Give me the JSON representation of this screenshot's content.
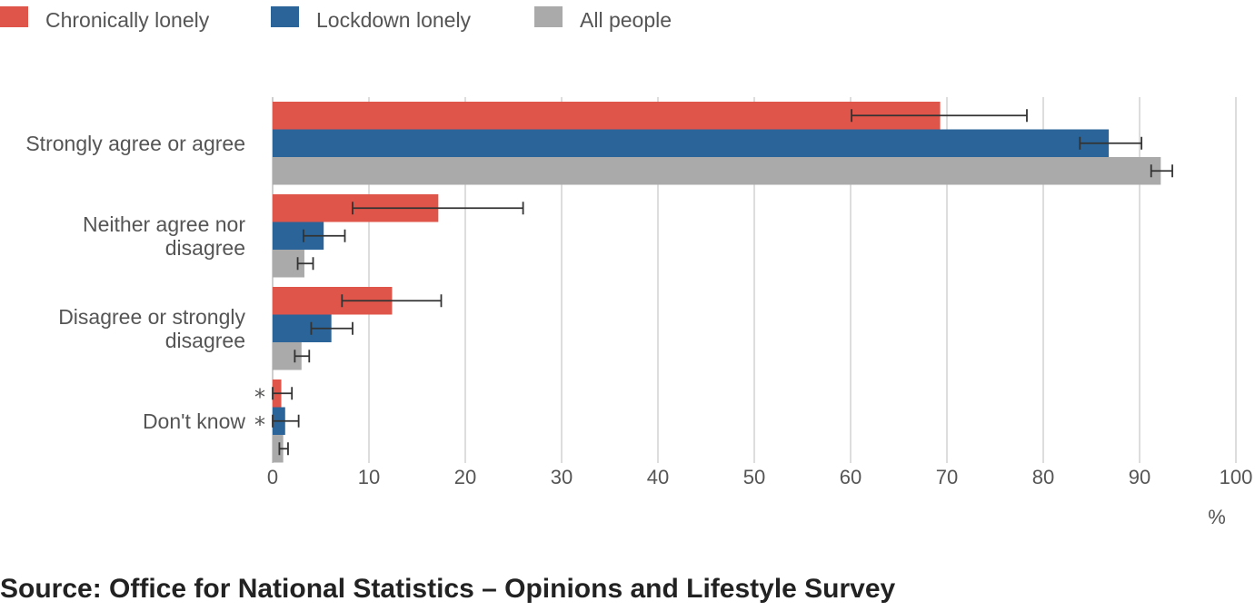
{
  "chart_data": {
    "type": "bar",
    "orientation": "horizontal",
    "categories": [
      "Strongly agree or agree",
      "Neither agree nor disagree",
      "Disagree or strongly disagree",
      "Don't know"
    ],
    "category_lines": [
      [
        "Strongly agree or agree"
      ],
      [
        "Neither agree nor",
        "disagree"
      ],
      [
        "Disagree or strongly",
        "disagree"
      ],
      [
        "Don't know"
      ]
    ],
    "series": [
      {
        "name": "Chronically lonely",
        "color": "#e0554a",
        "values": [
          69.3,
          17.2,
          12.4,
          0.9
        ],
        "ci_low": [
          60.1,
          8.3,
          7.2,
          0.0
        ],
        "ci_high": [
          78.3,
          26.0,
          17.5,
          2.0
        ],
        "unreliable": [
          false,
          false,
          false,
          true
        ]
      },
      {
        "name": "Lockdown lonely",
        "color": "#2a6499",
        "values": [
          86.8,
          5.3,
          6.1,
          1.3
        ],
        "ci_low": [
          83.8,
          3.2,
          4.0,
          0.0
        ],
        "ci_high": [
          90.2,
          7.5,
          8.3,
          2.7
        ],
        "unreliable": [
          false,
          false,
          false,
          true
        ]
      },
      {
        "name": "All people",
        "color": "#aaaaaa",
        "values": [
          92.2,
          3.3,
          3.0,
          1.1
        ],
        "ci_low": [
          91.2,
          2.6,
          2.3,
          0.7
        ],
        "ci_high": [
          93.4,
          4.2,
          3.8,
          1.6
        ],
        "unreliable": [
          false,
          false,
          false,
          false
        ]
      }
    ],
    "xlim": [
      0,
      100
    ],
    "xticks": [
      0,
      10,
      20,
      30,
      40,
      50,
      60,
      70,
      80,
      90,
      100
    ],
    "xlabel": "%",
    "unreliable_marker": "*",
    "grid": true,
    "legend_position": "top-left"
  },
  "source_text": "Source: Office for National Statistics – Opinions and Lifestyle Survey"
}
